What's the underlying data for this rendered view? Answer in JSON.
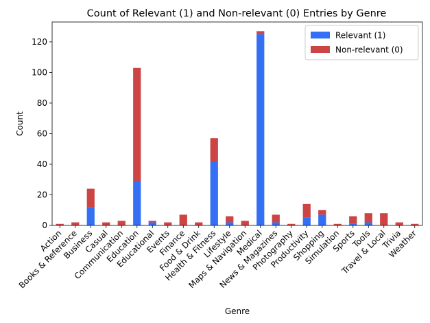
{
  "chart_data": {
    "type": "bar",
    "stacked": true,
    "title": "Count of Relevant (1) and Non-relevant (0) Entries by Genre",
    "xlabel": "Genre",
    "ylabel": "Count",
    "ylim": [
      0,
      133
    ],
    "yticks": [
      0,
      20,
      40,
      60,
      80,
      100,
      120
    ],
    "legend_position": "top-right",
    "grid": false,
    "categories": [
      "Action",
      "Books & Reference",
      "Business",
      "Casual",
      "Communication",
      "Education",
      "Educational",
      "Events",
      "Finance",
      "Food & Drink",
      "Health & Fitness",
      "Lifestyle",
      "Maps & Navigation",
      "Medical",
      "News & Magazines",
      "Photography",
      "Productivity",
      "Shopping",
      "Simulation",
      "Sports",
      "Tools",
      "Travel & Local",
      "Trivia",
      "Weather"
    ],
    "series": [
      {
        "name": "Relevant (1)",
        "color": "#3370f5",
        "values": [
          0,
          0,
          12,
          0,
          0,
          29,
          2,
          0,
          0,
          0,
          42,
          2,
          0,
          125,
          2,
          0,
          5,
          7,
          0,
          1,
          2,
          0,
          0,
          0
        ]
      },
      {
        "name": "Non-relevant (0)",
        "color": "#cc4444",
        "values": [
          1,
          2,
          12,
          2,
          3,
          74,
          1,
          2,
          7,
          2,
          15,
          4,
          3,
          2,
          5,
          1,
          9,
          3,
          1,
          5,
          6,
          8,
          2,
          1
        ]
      }
    ]
  }
}
